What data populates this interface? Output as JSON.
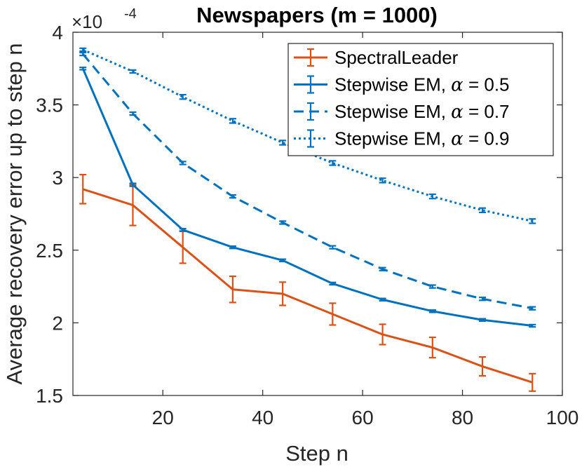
{
  "chart_data": {
    "type": "line",
    "title": "Newspapers (m = 1000)",
    "xlabel": "Step n",
    "ylabel": "Average recovery error up to step n",
    "y_scale_label": "×10",
    "y_scale_exponent": "-4",
    "xlim": [
      2,
      100
    ],
    "ylim": [
      1.5,
      4.0
    ],
    "xticks": [
      20,
      40,
      60,
      80,
      100
    ],
    "yticks": [
      1.5,
      2,
      2.5,
      3,
      3.5,
      4
    ],
    "ytick_labels": [
      "1.5",
      "2",
      "2.5",
      "3",
      "3.5",
      "4"
    ],
    "legend_position": "top-right",
    "x": [
      4,
      14,
      24,
      34,
      44,
      54,
      64,
      74,
      84,
      94
    ],
    "series": [
      {
        "name": "SpectralLeader",
        "legend_name": "SpectralLeader",
        "color": "#D95319",
        "style": "solid",
        "values": [
          2.92,
          2.81,
          2.52,
          2.23,
          2.2,
          2.06,
          1.92,
          1.83,
          1.7,
          1.59
        ],
        "err": [
          0.1,
          0.14,
          0.11,
          0.09,
          0.08,
          0.075,
          0.07,
          0.07,
          0.065,
          0.06
        ]
      },
      {
        "name": "Stepwise EM, α = 0.5",
        "legend_name": "Stepwise EM, ",
        "alpha_label": "α",
        "alpha_value": " = 0.5",
        "color": "#0072BD",
        "style": "solid",
        "values": [
          3.75,
          2.95,
          2.64,
          2.52,
          2.43,
          2.27,
          2.16,
          2.08,
          2.02,
          1.98
        ],
        "err": [
          0.008,
          0.01,
          0.008,
          0.008,
          0.008,
          0.008,
          0.008,
          0.008,
          0.008,
          0.008
        ]
      },
      {
        "name": "Stepwise EM, α = 0.7",
        "legend_name": "Stepwise EM, ",
        "alpha_label": "α",
        "alpha_value": " = 0.7",
        "color": "#0072BD",
        "style": "dashed",
        "values": [
          3.85,
          3.44,
          3.1,
          2.87,
          2.69,
          2.52,
          2.37,
          2.25,
          2.165,
          2.1
        ],
        "err": [
          0.01,
          0.01,
          0.01,
          0.01,
          0.01,
          0.01,
          0.01,
          0.01,
          0.01,
          0.01
        ]
      },
      {
        "name": "Stepwise EM, α = 0.9",
        "legend_name": "Stepwise EM, ",
        "alpha_label": "α",
        "alpha_value": " = 0.9",
        "color": "#0072BD",
        "style": "dotted",
        "values": [
          3.88,
          3.73,
          3.555,
          3.39,
          3.24,
          3.1,
          2.98,
          2.87,
          2.775,
          2.7
        ],
        "err": [
          0.01,
          0.01,
          0.015,
          0.015,
          0.015,
          0.015,
          0.015,
          0.015,
          0.015,
          0.015
        ]
      }
    ]
  }
}
